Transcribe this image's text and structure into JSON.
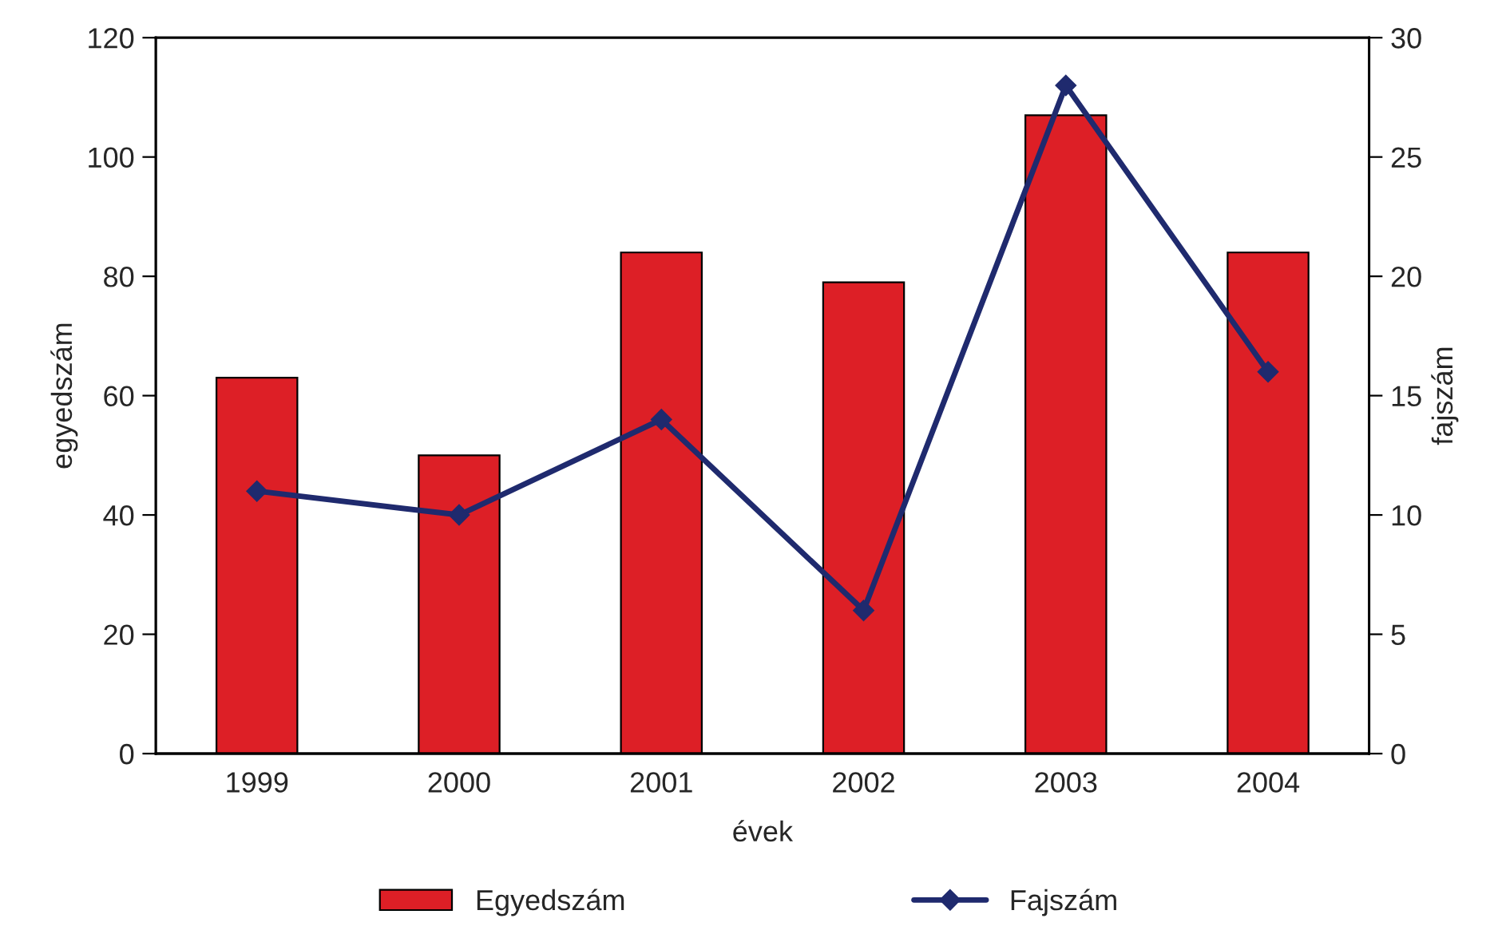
{
  "chart_data": {
    "type": "bar",
    "xlabel": "évek",
    "ylabel": "egyedszám",
    "y2label": "fajszám",
    "categories": [
      "1999",
      "2000",
      "2001",
      "2002",
      "2003",
      "2004"
    ],
    "series": [
      {
        "name": "Egyedszám",
        "color": "#dd1f26",
        "values": [
          63,
          50,
          84,
          79,
          107,
          84
        ]
      },
      {
        "name": "Fajszám",
        "color": "#1f2a6e",
        "type": "line",
        "axis": "y2",
        "marker": "diamond",
        "values": [
          11,
          10,
          14,
          6,
          28,
          16
        ]
      }
    ],
    "ylim": [
      0,
      120
    ],
    "yticks": [
      0,
      20,
      40,
      60,
      80,
      100,
      120
    ],
    "y2lim": [
      0,
      30
    ],
    "y2ticks": [
      0,
      5,
      10,
      15,
      20,
      25,
      30
    ],
    "grid": false,
    "legend": "bottom"
  }
}
